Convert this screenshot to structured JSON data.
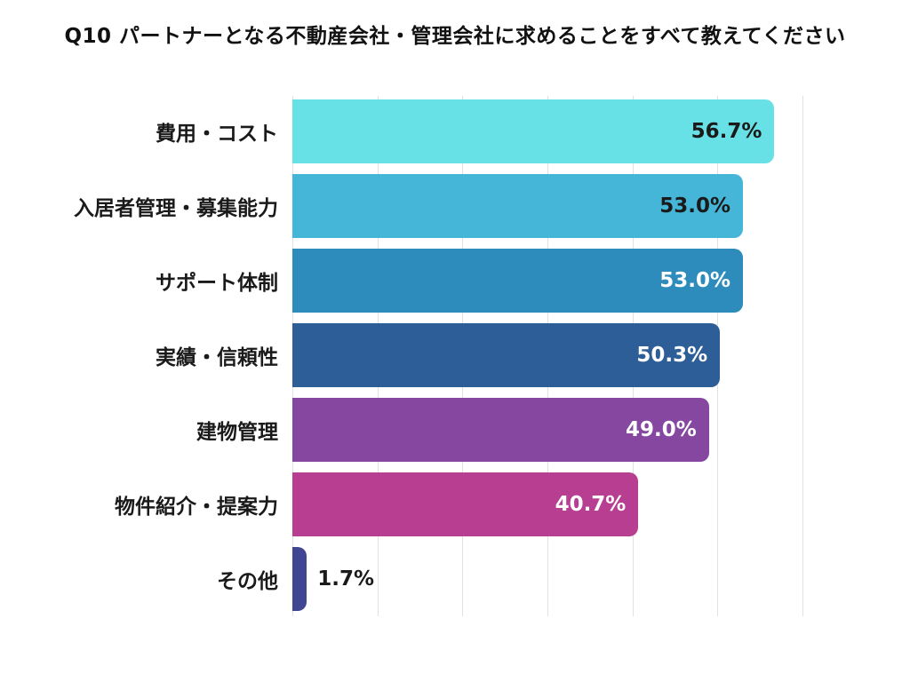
{
  "title": "Q10 パートナーとなる不動産会社・管理会社に求めることをすべて教えてください",
  "chart_data": {
    "type": "bar",
    "orientation": "horizontal",
    "title": "Q10 パートナーとなる不動産会社・管理会社に求めることをすべて教えてください",
    "categories": [
      "費用・コスト",
      "入居者管理・募集能力",
      "サポート体制",
      "実績・信頼性",
      "建物管理",
      "物件紹介・提案力",
      "その他"
    ],
    "values": [
      56.7,
      53.0,
      53.0,
      50.3,
      49.0,
      40.7,
      1.7
    ],
    "value_labels": [
      "56.7%",
      "53.0%",
      "53.0%",
      "50.3%",
      "49.0%",
      "40.7%",
      "1.7%"
    ],
    "xlim": [
      0,
      60
    ],
    "gridline_step": 10,
    "grid_on": true,
    "legend": "none",
    "bars": [
      {
        "category": "費用・コスト",
        "value": 56.7,
        "label": "56.7%",
        "color": "#68E1E6",
        "label_color": "#1a1a1a",
        "label_placement": "inside"
      },
      {
        "category": "入居者管理・募集能力",
        "value": 53.0,
        "label": "53.0%",
        "color": "#45B6D8",
        "label_color": "#1a1a1a",
        "label_placement": "inside"
      },
      {
        "category": "サポート体制",
        "value": 53.0,
        "label": "53.0%",
        "color": "#2E8CBD",
        "label_color": "#ffffff",
        "label_placement": "inside"
      },
      {
        "category": "実績・信頼性",
        "value": 50.3,
        "label": "50.3%",
        "color": "#2D5E97",
        "label_color": "#ffffff",
        "label_placement": "inside"
      },
      {
        "category": "建物管理",
        "value": 49.0,
        "label": "49.0%",
        "color": "#8647A0",
        "label_color": "#ffffff",
        "label_placement": "inside"
      },
      {
        "category": "物件紹介・提案力",
        "value": 40.7,
        "label": "40.7%",
        "color": "#B83E92",
        "label_color": "#ffffff",
        "label_placement": "inside"
      },
      {
        "category": "その他",
        "value": 1.7,
        "label": "1.7%",
        "color": "#414693",
        "label_color": "#1a1a1a",
        "label_placement": "outside"
      }
    ],
    "colors": {
      "background": "#ffffff",
      "grid": "#e1e1e1",
      "text": "#1a1a1a"
    }
  }
}
